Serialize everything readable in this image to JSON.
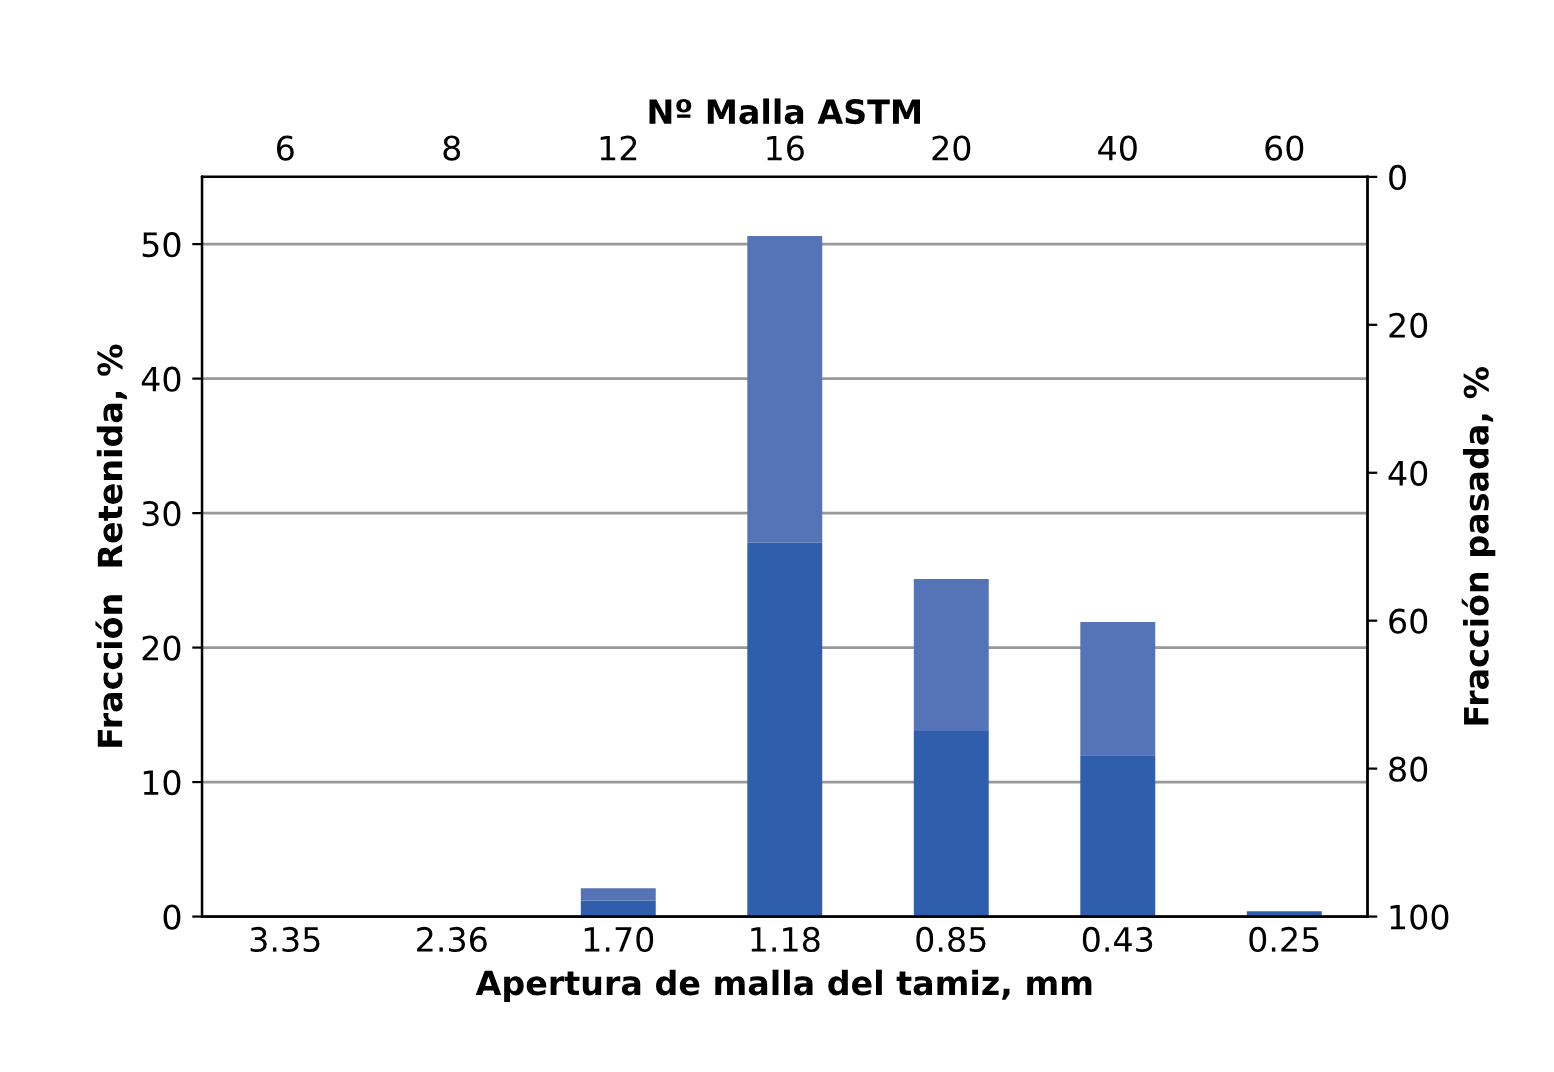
{
  "chart_data": {
    "type": "bar",
    "stacked": true,
    "xlabel": "Apertura de malla del tamiz, mm",
    "ylabel": "Fracción  Retenida, %",
    "y2label": "Fracción pasada, %",
    "x2label": "Nº Malla ASTM",
    "categories": [
      "3.35",
      "2.36",
      "1.70",
      "1.18",
      "0.85",
      "0.43",
      "0.25"
    ],
    "annotations": [
      "6",
      "8",
      "12",
      "16",
      "20",
      "40",
      "60"
    ],
    "series": [
      {
        "color": "#2f5eac",
        "values": [
          0,
          0,
          1.2,
          27.8,
          13.8,
          12.0,
          0.4
        ]
      },
      {
        "color": "#5574b8",
        "values": [
          0,
          0,
          0.9,
          22.8,
          11.3,
          9.9,
          0
        ]
      }
    ],
    "ylim": [
      0,
      55
    ],
    "yticks": [
      0,
      10,
      20,
      30,
      40,
      50
    ],
    "y2lim": [
      100,
      0
    ],
    "y2ticks": [
      0,
      20,
      40,
      60,
      80,
      100
    ],
    "grid": "y"
  }
}
